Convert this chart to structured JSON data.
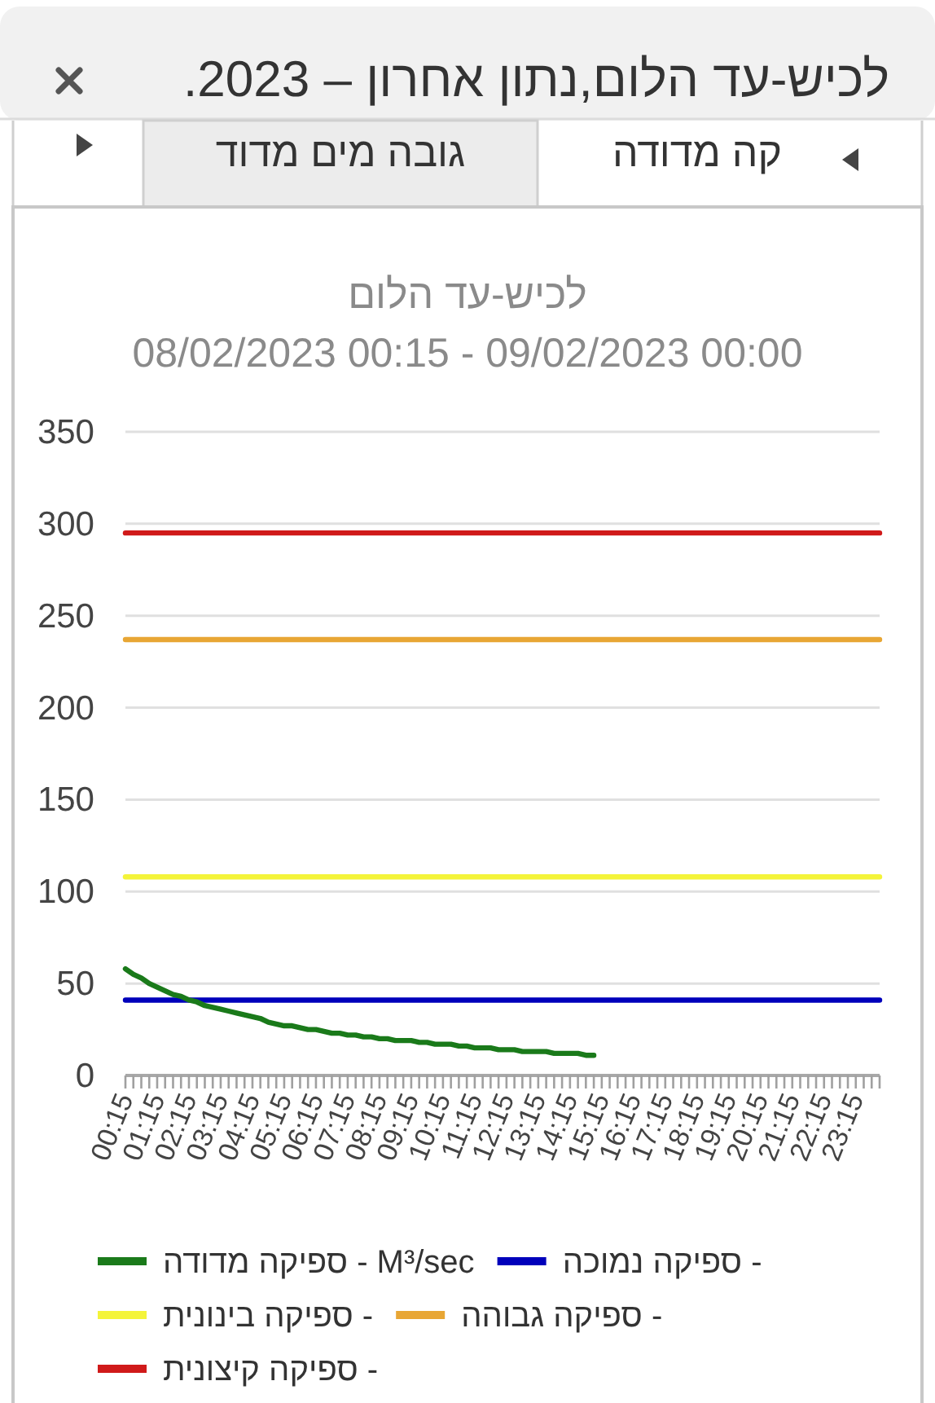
{
  "chart_data": {
    "type": "line",
    "title": "לכיש-עד הלום",
    "subtitle": "08/02/2023 00:15 - 09/02/2023 00:00",
    "annotations": [
      "לכיש-עד הלום,נתון אחרון – 2023.",
      "קה מדודה",
      "גובה מים מדוד"
    ],
    "categories": [
      "00:15",
      null,
      null,
      null,
      "01:15",
      null,
      null,
      null,
      "02:15",
      null,
      null,
      null,
      "03:15",
      null,
      null,
      null,
      "04:15",
      null,
      null,
      null,
      "05:15",
      null,
      null,
      null,
      "06:15",
      null,
      null,
      null,
      "07:15",
      null,
      null,
      null,
      "08:15",
      null,
      null,
      null,
      "09:15",
      null,
      null,
      null,
      "10:15",
      null,
      null,
      null,
      "11:15",
      null,
      null,
      null,
      "12:15",
      null,
      null,
      null,
      "13:15",
      null,
      null,
      null,
      "14:15",
      null,
      null,
      null,
      "15:15",
      null,
      null,
      null,
      "16:15",
      null,
      null,
      null,
      "17:15",
      null,
      null,
      null,
      "18:15",
      null,
      null,
      null,
      "19:15",
      null,
      null,
      null,
      "20:15",
      null,
      null,
      null,
      "21:15",
      null,
      null,
      null,
      "22:15",
      null,
      null,
      null,
      "23:15",
      null,
      null,
      null
    ],
    "series": [
      {
        "name": "ספיקה מדודה - M³/sec",
        "color": "#1a7a1a",
        "values": [
          58,
          55,
          53,
          50,
          48,
          46,
          44,
          43,
          41,
          40,
          38,
          37,
          36,
          35,
          34,
          33,
          32,
          31,
          29,
          28,
          27,
          27,
          26,
          25,
          25,
          24,
          23,
          23,
          22,
          22,
          21,
          21,
          20,
          20,
          19,
          19,
          19,
          18,
          18,
          17,
          17,
          17,
          16,
          16,
          15,
          15,
          15,
          14,
          14,
          14,
          13,
          13,
          13,
          13,
          12,
          12,
          12,
          12,
          11,
          11,
          null,
          null,
          null,
          null,
          null,
          null,
          null,
          null,
          null,
          null,
          null,
          null,
          null,
          null,
          null,
          null,
          null,
          null,
          null,
          null,
          null,
          null,
          null,
          null,
          null,
          null,
          null,
          null,
          null,
          null,
          null,
          null,
          null,
          null,
          null,
          null
        ]
      },
      {
        "name": "ספיקה נמוכה -",
        "color": "#0000bb",
        "values": [
          41,
          41,
          41,
          41,
          41,
          41,
          41,
          41,
          41,
          41,
          41,
          41,
          41,
          41,
          41,
          41,
          41,
          41,
          41,
          41,
          41,
          41,
          41,
          41,
          41,
          41,
          41,
          41,
          41,
          41,
          41,
          41,
          41,
          41,
          41,
          41,
          41,
          41,
          41,
          41,
          41,
          41,
          41,
          41,
          41,
          41,
          41,
          41,
          41,
          41,
          41,
          41,
          41,
          41,
          41,
          41,
          41,
          41,
          41,
          41,
          41,
          41,
          41,
          41,
          41,
          41,
          41,
          41,
          41,
          41,
          41,
          41,
          41,
          41,
          41,
          41,
          41,
          41,
          41,
          41,
          41,
          41,
          41,
          41,
          41,
          41,
          41,
          41,
          41,
          41,
          41,
          41,
          41,
          41,
          41,
          41
        ]
      },
      {
        "name": "ספיקה בינונית -",
        "color": "#f4f43a",
        "values": [
          108,
          108,
          108,
          108,
          108,
          108,
          108,
          108,
          108,
          108,
          108,
          108,
          108,
          108,
          108,
          108,
          108,
          108,
          108,
          108,
          108,
          108,
          108,
          108,
          108,
          108,
          108,
          108,
          108,
          108,
          108,
          108,
          108,
          108,
          108,
          108,
          108,
          108,
          108,
          108,
          108,
          108,
          108,
          108,
          108,
          108,
          108,
          108,
          108,
          108,
          108,
          108,
          108,
          108,
          108,
          108,
          108,
          108,
          108,
          108,
          108,
          108,
          108,
          108,
          108,
          108,
          108,
          108,
          108,
          108,
          108,
          108,
          108,
          108,
          108,
          108,
          108,
          108,
          108,
          108,
          108,
          108,
          108,
          108,
          108,
          108,
          108,
          108,
          108,
          108,
          108,
          108,
          108,
          108,
          108,
          108
        ]
      },
      {
        "name": "ספיקה גבוהה -",
        "color": "#e8a634",
        "values": [
          237,
          237,
          237,
          237,
          237,
          237,
          237,
          237,
          237,
          237,
          237,
          237,
          237,
          237,
          237,
          237,
          237,
          237,
          237,
          237,
          237,
          237,
          237,
          237,
          237,
          237,
          237,
          237,
          237,
          237,
          237,
          237,
          237,
          237,
          237,
          237,
          237,
          237,
          237,
          237,
          237,
          237,
          237,
          237,
          237,
          237,
          237,
          237,
          237,
          237,
          237,
          237,
          237,
          237,
          237,
          237,
          237,
          237,
          237,
          237,
          237,
          237,
          237,
          237,
          237,
          237,
          237,
          237,
          237,
          237,
          237,
          237,
          237,
          237,
          237,
          237,
          237,
          237,
          237,
          237,
          237,
          237,
          237,
          237,
          237,
          237,
          237,
          237,
          237,
          237,
          237,
          237,
          237,
          237,
          237,
          237
        ]
      },
      {
        "name": "ספיקה קיצונית -",
        "color": "#d01a1a",
        "values": [
          295,
          295,
          295,
          295,
          295,
          295,
          295,
          295,
          295,
          295,
          295,
          295,
          295,
          295,
          295,
          295,
          295,
          295,
          295,
          295,
          295,
          295,
          295,
          295,
          295,
          295,
          295,
          295,
          295,
          295,
          295,
          295,
          295,
          295,
          295,
          295,
          295,
          295,
          295,
          295,
          295,
          295,
          295,
          295,
          295,
          295,
          295,
          295,
          295,
          295,
          295,
          295,
          295,
          295,
          295,
          295,
          295,
          295,
          295,
          295,
          295,
          295,
          295,
          295,
          295,
          295,
          295,
          295,
          295,
          295,
          295,
          295,
          295,
          295,
          295,
          295,
          295,
          295,
          295,
          295,
          295,
          295,
          295,
          295,
          295,
          295,
          295,
          295,
          295,
          295,
          295,
          295,
          295,
          295,
          295,
          295
        ]
      }
    ],
    "ylim": [
      0,
      350
    ],
    "yticks": [
      0,
      50,
      100,
      150,
      200,
      250,
      300,
      350
    ],
    "grid": "y",
    "legend": "bottom",
    "marker": "none",
    "line_style": "solid"
  }
}
